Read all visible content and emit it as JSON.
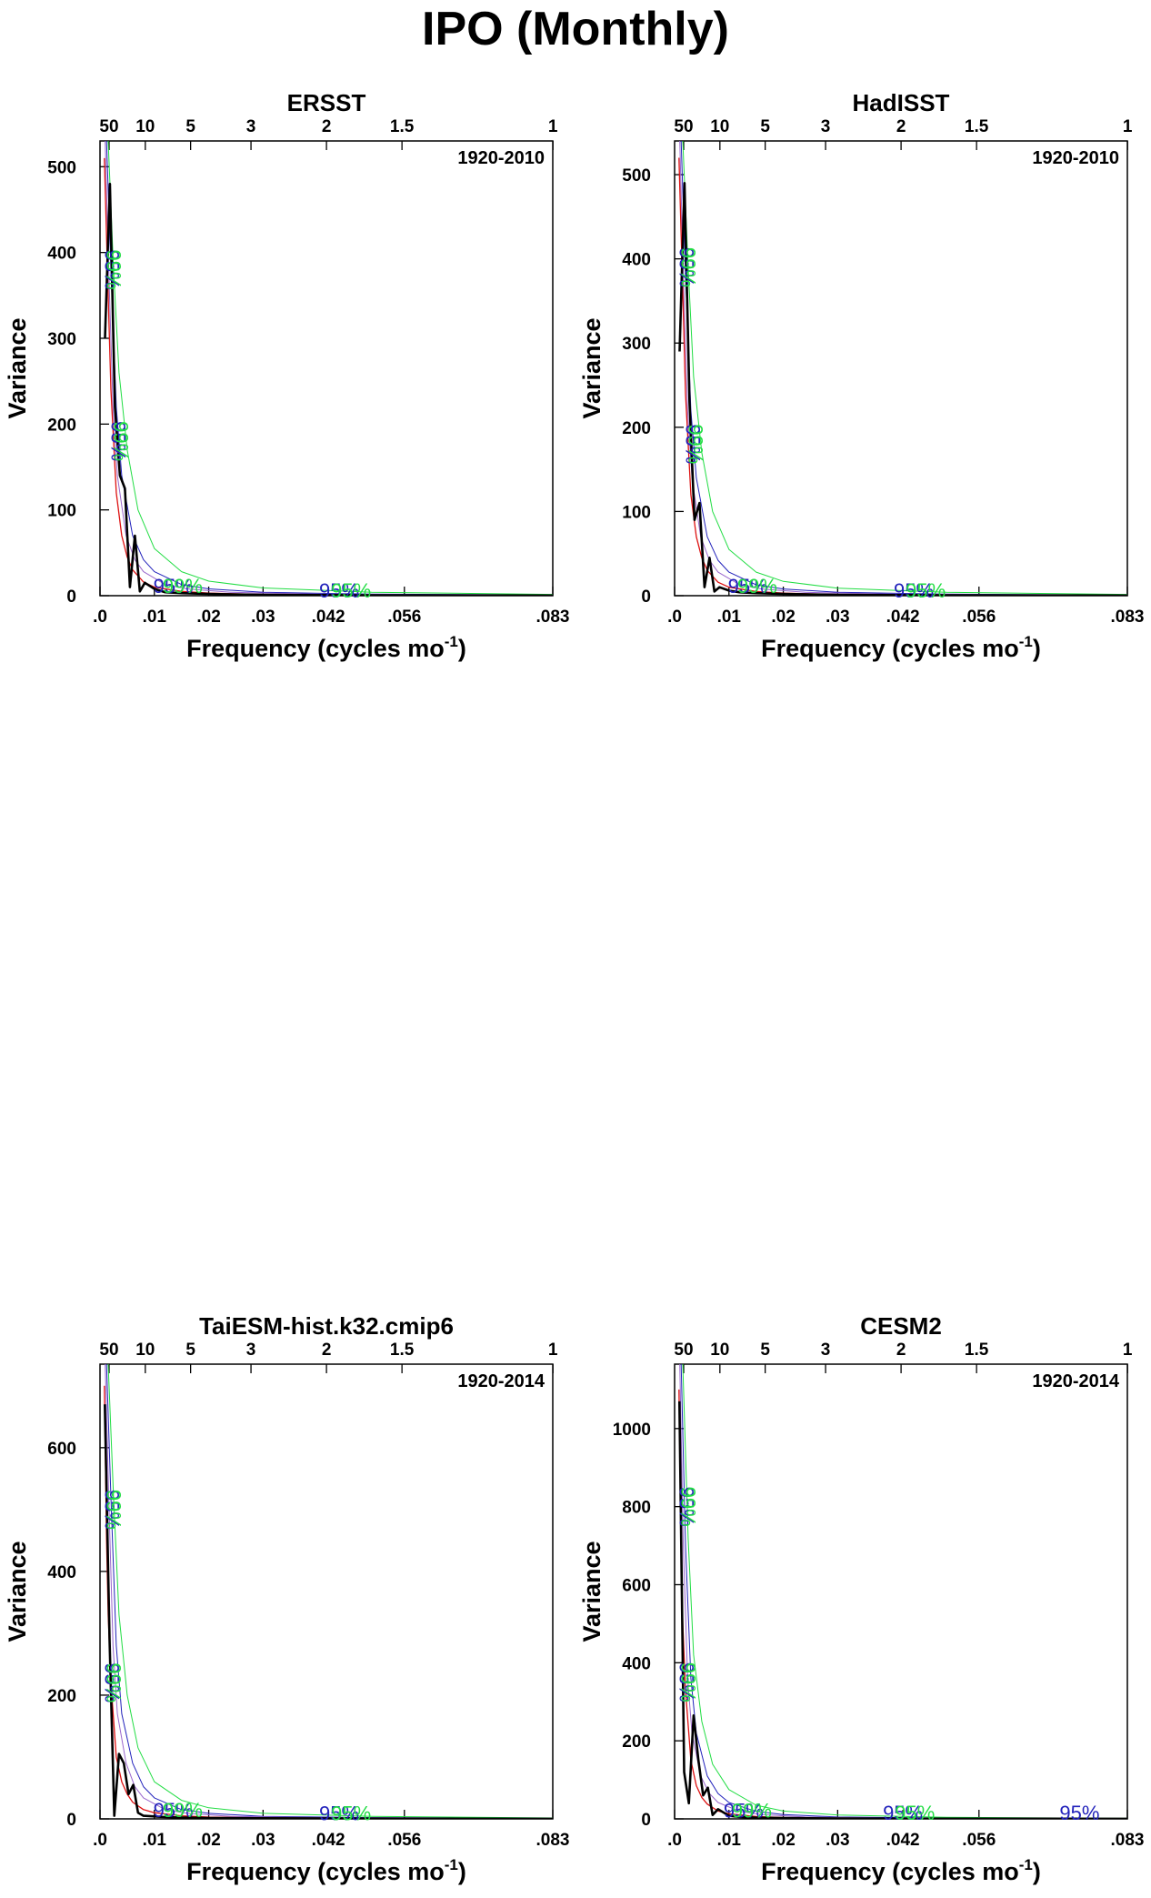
{
  "figure": {
    "title": "IPO (Monthly)"
  },
  "colors": {
    "spectrum": "#000000",
    "red_noise": "#dd1111",
    "conf_blue": "#2222bb",
    "conf_green": "#22dd44",
    "conf_aux": "#9966cc"
  },
  "chart_data": [
    {
      "type": "line",
      "title": "ERSST",
      "period": "1920-2010",
      "xlabel": "Frequency (cycles mo",
      "xlabel_sup": "-1",
      "xlabel_end": ")",
      "ylabel": "Variance",
      "xlim": [
        0,
        0.0833
      ],
      "ylim": [
        0,
        530
      ],
      "xticks": [
        {
          "v": 0,
          "label": ".0"
        },
        {
          "v": 0.01,
          "label": ".01"
        },
        {
          "v": 0.02,
          "label": ".02"
        },
        {
          "v": 0.03,
          "label": ".03"
        },
        {
          "v": 0.042,
          "label": ".042"
        },
        {
          "v": 0.056,
          "label": ".056"
        },
        {
          "v": 0.0833,
          "label": ".083"
        }
      ],
      "yticks": [
        0,
        100,
        200,
        300,
        400,
        500
      ],
      "period_ticks": [
        {
          "v": 0.001667,
          "label": "50"
        },
        {
          "v": 0.008333,
          "label": "10"
        },
        {
          "v": 0.016667,
          "label": "5"
        },
        {
          "v": 0.027778,
          "label": "3"
        },
        {
          "v": 0.041667,
          "label": "2"
        },
        {
          "v": 0.055556,
          "label": "1.5"
        },
        {
          "v": 0.083333,
          "label": "1"
        }
      ],
      "spectrum": {
        "x": [
          0.00092,
          0.00183,
          0.00275,
          0.00367,
          0.00458,
          0.0055,
          0.00642,
          0.00733,
          0.00825,
          0.01,
          0.012,
          0.015,
          0.02,
          0.03,
          0.05,
          0.0833
        ],
        "y": [
          300,
          480,
          220,
          140,
          125,
          10,
          70,
          5,
          15,
          8,
          4,
          3,
          2,
          1,
          0.5,
          0.2
        ]
      },
      "red_noise": {
        "x": [
          0.0008,
          0.0015,
          0.002,
          0.003,
          0.004,
          0.005,
          0.006,
          0.008,
          0.01,
          0.015,
          0.02,
          0.03,
          0.05,
          0.0833
        ],
        "y": [
          510,
          350,
          240,
          120,
          70,
          45,
          30,
          16,
          10,
          5,
          3,
          1.5,
          0.7,
          0.3
        ]
      },
      "conf_blue": {
        "x": [
          0.0012,
          0.002,
          0.003,
          0.004,
          0.006,
          0.008,
          0.01,
          0.015,
          0.02,
          0.03,
          0.05,
          0.0833
        ],
        "y": [
          530,
          380,
          220,
          140,
          70,
          42,
          28,
          13,
          8,
          4,
          1.8,
          0.8
        ]
      },
      "conf_green": {
        "x": [
          0.0015,
          0.0025,
          0.0035,
          0.005,
          0.007,
          0.01,
          0.015,
          0.02,
          0.03,
          0.05,
          0.0833
        ],
        "y": [
          530,
          380,
          260,
          170,
          100,
          55,
          28,
          17,
          9,
          4,
          1.5
        ]
      },
      "conf_labels": [
        {
          "text": "95%",
          "x": 0.0021,
          "y": 380,
          "color": "blue",
          "vertical": true
        },
        {
          "text": "99%",
          "x": 0.0024,
          "y": 380,
          "color": "green",
          "vertical": true
        },
        {
          "text": "95%",
          "x": 0.0033,
          "y": 180,
          "color": "blue",
          "vertical": true
        },
        {
          "text": "99%",
          "x": 0.0038,
          "y": 180,
          "color": "green",
          "vertical": true
        },
        {
          "text": "95%",
          "x": 0.0135,
          "y": 3,
          "color": "blue"
        },
        {
          "text": "99%",
          "x": 0.0152,
          "y": 3,
          "color": "green"
        },
        {
          "text": "95%",
          "x": 0.044,
          "y": -2,
          "color": "blue"
        },
        {
          "text": "95%",
          "x": 0.0462,
          "y": -2,
          "color": "green"
        }
      ]
    },
    {
      "type": "line",
      "title": "HadISST",
      "period": "1920-2010",
      "xlabel": "Frequency (cycles mo",
      "xlabel_sup": "-1",
      "xlabel_end": ")",
      "ylabel": "Variance",
      "xlim": [
        0,
        0.0833
      ],
      "ylim": [
        0,
        540
      ],
      "xticks": [
        {
          "v": 0,
          "label": ".0"
        },
        {
          "v": 0.01,
          "label": ".01"
        },
        {
          "v": 0.02,
          "label": ".02"
        },
        {
          "v": 0.03,
          "label": ".03"
        },
        {
          "v": 0.042,
          "label": ".042"
        },
        {
          "v": 0.056,
          "label": ".056"
        },
        {
          "v": 0.0833,
          "label": ".083"
        }
      ],
      "yticks": [
        0,
        100,
        200,
        300,
        400,
        500
      ],
      "period_ticks": [
        {
          "v": 0.001667,
          "label": "50"
        },
        {
          "v": 0.008333,
          "label": "10"
        },
        {
          "v": 0.016667,
          "label": "5"
        },
        {
          "v": 0.027778,
          "label": "3"
        },
        {
          "v": 0.041667,
          "label": "2"
        },
        {
          "v": 0.055556,
          "label": "1.5"
        },
        {
          "v": 0.083333,
          "label": "1"
        }
      ],
      "spectrum": {
        "x": [
          0.00092,
          0.00183,
          0.00275,
          0.00367,
          0.00458,
          0.0055,
          0.00642,
          0.00733,
          0.00825,
          0.01,
          0.012,
          0.015,
          0.02,
          0.03,
          0.05,
          0.0833
        ],
        "y": [
          290,
          490,
          230,
          90,
          110,
          10,
          45,
          5,
          10,
          6,
          4,
          3,
          2,
          1,
          0.5,
          0.2
        ]
      },
      "red_noise": {
        "x": [
          0.0008,
          0.0015,
          0.002,
          0.003,
          0.004,
          0.005,
          0.006,
          0.008,
          0.01,
          0.015,
          0.02,
          0.03,
          0.05,
          0.0833
        ],
        "y": [
          520,
          360,
          240,
          120,
          70,
          45,
          30,
          16,
          10,
          5,
          3,
          1.5,
          0.7,
          0.3
        ]
      },
      "conf_blue": {
        "x": [
          0.0012,
          0.002,
          0.003,
          0.004,
          0.006,
          0.008,
          0.01,
          0.015,
          0.02,
          0.03,
          0.05,
          0.0833
        ],
        "y": [
          540,
          380,
          220,
          140,
          70,
          42,
          28,
          13,
          8,
          4,
          1.8,
          0.8
        ]
      },
      "conf_green": {
        "x": [
          0.0015,
          0.0025,
          0.0035,
          0.005,
          0.007,
          0.01,
          0.015,
          0.02,
          0.03,
          0.05,
          0.0833
        ],
        "y": [
          540,
          390,
          260,
          170,
          100,
          55,
          28,
          17,
          9,
          4,
          1.5
        ]
      },
      "conf_labels": [
        {
          "text": "95%",
          "x": 0.0021,
          "y": 390,
          "color": "blue",
          "vertical": true
        },
        {
          "text": "99%",
          "x": 0.0024,
          "y": 390,
          "color": "green",
          "vertical": true
        },
        {
          "text": "95%",
          "x": 0.0033,
          "y": 180,
          "color": "blue",
          "vertical": true
        },
        {
          "text": "99%",
          "x": 0.0038,
          "y": 180,
          "color": "green",
          "vertical": true
        },
        {
          "text": "95%",
          "x": 0.0135,
          "y": 3,
          "color": "blue"
        },
        {
          "text": "99%",
          "x": 0.0152,
          "y": 3,
          "color": "green"
        },
        {
          "text": "95%",
          "x": 0.044,
          "y": -2,
          "color": "blue"
        },
        {
          "text": "95%",
          "x": 0.0462,
          "y": -2,
          "color": "green"
        }
      ]
    },
    {
      "type": "line",
      "title": "TaiESM-hist.k32.cmip6",
      "period": "1920-2014",
      "xlabel": "Frequency (cycles mo",
      "xlabel_sup": "-1",
      "xlabel_end": ")",
      "ylabel": "Variance",
      "xlim": [
        0,
        0.0833
      ],
      "ylim": [
        0,
        735
      ],
      "xticks": [
        {
          "v": 0,
          "label": ".0"
        },
        {
          "v": 0.01,
          "label": ".01"
        },
        {
          "v": 0.02,
          "label": ".02"
        },
        {
          "v": 0.03,
          "label": ".03"
        },
        {
          "v": 0.042,
          "label": ".042"
        },
        {
          "v": 0.056,
          "label": ".056"
        },
        {
          "v": 0.0833,
          "label": ".083"
        }
      ],
      "yticks": [
        0,
        200,
        400,
        600
      ],
      "period_ticks": [
        {
          "v": 0.001667,
          "label": "50"
        },
        {
          "v": 0.008333,
          "label": "10"
        },
        {
          "v": 0.016667,
          "label": "5"
        },
        {
          "v": 0.027778,
          "label": "3"
        },
        {
          "v": 0.041667,
          "label": "2"
        },
        {
          "v": 0.055556,
          "label": "1.5"
        },
        {
          "v": 0.083333,
          "label": "1"
        }
      ],
      "spectrum": {
        "x": [
          0.00088,
          0.00175,
          0.00263,
          0.0035,
          0.00438,
          0.00525,
          0.00613,
          0.007,
          0.008,
          0.01,
          0.012,
          0.015,
          0.02,
          0.03,
          0.05,
          0.0833
        ],
        "y": [
          670,
          290,
          5,
          105,
          90,
          40,
          55,
          10,
          5,
          4,
          3,
          2,
          1.5,
          1,
          0.5,
          0.2
        ]
      },
      "red_noise": {
        "x": [
          0.0008,
          0.0012,
          0.0015,
          0.002,
          0.003,
          0.004,
          0.005,
          0.006,
          0.008,
          0.01,
          0.015,
          0.02,
          0.03,
          0.05,
          0.0833
        ],
        "y": [
          700,
          450,
          330,
          220,
          100,
          60,
          40,
          27,
          15,
          10,
          5,
          3,
          1.5,
          0.7,
          0.3
        ]
      },
      "conf_blue": {
        "x": [
          0.0012,
          0.002,
          0.003,
          0.004,
          0.006,
          0.008,
          0.01,
          0.015,
          0.02,
          0.03,
          0.05,
          0.0833
        ],
        "y": [
          735,
          520,
          280,
          170,
          90,
          52,
          34,
          15,
          9,
          4,
          2,
          0.8
        ]
      },
      "conf_green": {
        "x": [
          0.0015,
          0.0025,
          0.0035,
          0.005,
          0.007,
          0.01,
          0.015,
          0.02,
          0.03,
          0.05,
          0.0833
        ],
        "y": [
          735,
          520,
          330,
          200,
          115,
          60,
          30,
          18,
          9,
          4,
          1.5
        ]
      },
      "conf_labels": [
        {
          "text": "95%",
          "x": 0.0021,
          "y": 500,
          "color": "blue",
          "vertical": true
        },
        {
          "text": "99%",
          "x": 0.0024,
          "y": 500,
          "color": "green",
          "vertical": true
        },
        {
          "text": "95%",
          "x": 0.0021,
          "y": 220,
          "color": "blue",
          "vertical": true
        },
        {
          "text": "99%",
          "x": 0.0024,
          "y": 220,
          "color": "green",
          "vertical": true
        },
        {
          "text": "95%",
          "x": 0.0135,
          "y": 3,
          "color": "blue"
        },
        {
          "text": "99%",
          "x": 0.0152,
          "y": 3,
          "color": "green"
        },
        {
          "text": "95%",
          "x": 0.044,
          "y": -2,
          "color": "blue"
        },
        {
          "text": "95%",
          "x": 0.0462,
          "y": -2,
          "color": "green"
        }
      ]
    },
    {
      "type": "line",
      "title": "CESM2",
      "period": "1920-2014",
      "xlabel": "Frequency (cycles mo",
      "xlabel_sup": "-1",
      "xlabel_end": ")",
      "ylabel": "Variance",
      "xlim": [
        0,
        0.0833
      ],
      "ylim": [
        0,
        1165
      ],
      "xticks": [
        {
          "v": 0,
          "label": ".0"
        },
        {
          "v": 0.01,
          "label": ".01"
        },
        {
          "v": 0.02,
          "label": ".02"
        },
        {
          "v": 0.03,
          "label": ".03"
        },
        {
          "v": 0.042,
          "label": ".042"
        },
        {
          "v": 0.056,
          "label": ".056"
        },
        {
          "v": 0.0833,
          "label": ".083"
        }
      ],
      "yticks": [
        0,
        200,
        400,
        600,
        800,
        1000
      ],
      "period_ticks": [
        {
          "v": 0.001667,
          "label": "50"
        },
        {
          "v": 0.008333,
          "label": "10"
        },
        {
          "v": 0.016667,
          "label": "5"
        },
        {
          "v": 0.027778,
          "label": "3"
        },
        {
          "v": 0.041667,
          "label": "2"
        },
        {
          "v": 0.055556,
          "label": "1.5"
        },
        {
          "v": 0.083333,
          "label": "1"
        }
      ],
      "spectrum": {
        "x": [
          0.00088,
          0.00175,
          0.00263,
          0.0035,
          0.00438,
          0.00525,
          0.00613,
          0.007,
          0.008,
          0.01,
          0.012,
          0.015,
          0.02,
          0.03,
          0.05,
          0.0833
        ],
        "y": [
          1070,
          120,
          40,
          265,
          150,
          60,
          80,
          10,
          25,
          8,
          5,
          3,
          2,
          1,
          0.5,
          0.2
        ]
      },
      "red_noise": {
        "x": [
          0.0008,
          0.0012,
          0.0015,
          0.002,
          0.003,
          0.004,
          0.005,
          0.006,
          0.008,
          0.01,
          0.015,
          0.02,
          0.03,
          0.05,
          0.0833
        ],
        "y": [
          1100,
          700,
          500,
          330,
          150,
          85,
          55,
          38,
          20,
          13,
          6,
          3.5,
          1.6,
          0.7,
          0.3
        ]
      },
      "conf_blue": {
        "x": [
          0.0012,
          0.002,
          0.003,
          0.004,
          0.006,
          0.008,
          0.01,
          0.015,
          0.02,
          0.03,
          0.05,
          0.0833
        ],
        "y": [
          1165,
          700,
          360,
          220,
          110,
          65,
          42,
          19,
          11,
          5,
          2,
          0.8
        ]
      },
      "conf_green": {
        "x": [
          0.0015,
          0.0025,
          0.0035,
          0.005,
          0.007,
          0.01,
          0.015,
          0.02,
          0.03,
          0.05,
          0.0833
        ],
        "y": [
          1165,
          720,
          420,
          250,
          140,
          75,
          35,
          20,
          10,
          4,
          1.5
        ]
      },
      "conf_labels": [
        {
          "text": "95%",
          "x": 0.0021,
          "y": 800,
          "color": "blue",
          "vertical": true
        },
        {
          "text": "99%",
          "x": 0.0024,
          "y": 800,
          "color": "green",
          "vertical": true
        },
        {
          "text": "95%",
          "x": 0.0021,
          "y": 350,
          "color": "blue",
          "vertical": true
        },
        {
          "text": "99%",
          "x": 0.0024,
          "y": 350,
          "color": "green",
          "vertical": true
        },
        {
          "text": "95%",
          "x": 0.0127,
          "y": 3,
          "color": "blue"
        },
        {
          "text": "99%",
          "x": 0.0142,
          "y": 3,
          "color": "green"
        },
        {
          "text": "95%",
          "x": 0.042,
          "y": -2,
          "color": "blue"
        },
        {
          "text": "95%",
          "x": 0.0442,
          "y": -2,
          "color": "green"
        },
        {
          "text": "95%",
          "x": 0.0745,
          "y": -2,
          "color": "blue"
        }
      ]
    }
  ]
}
